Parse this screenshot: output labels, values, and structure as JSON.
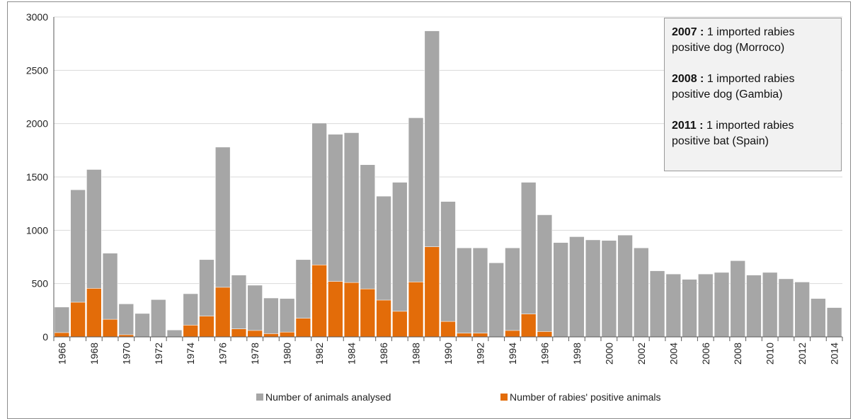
{
  "chart_data": {
    "type": "bar",
    "categories": [
      "1966",
      "1967",
      "1968",
      "1969",
      "1970",
      "1971",
      "1972",
      "1973",
      "1974",
      "1975",
      "1976",
      "1977",
      "1978",
      "1979",
      "1980",
      "1981",
      "1982",
      "1983",
      "1984",
      "1985",
      "1986",
      "1987",
      "1988",
      "1989",
      "1990",
      "1991",
      "1992",
      "1993",
      "1994",
      "1995",
      "1996",
      "1997",
      "1998",
      "1999",
      "2000",
      "2001",
      "2002",
      "2003",
      "2004",
      "2005",
      "2006",
      "2007",
      "2008",
      "2009",
      "2010",
      "2011",
      "2012",
      "2013",
      "2014"
    ],
    "x_tick_labels": [
      "1966",
      "1968",
      "1970",
      "1972",
      "1974",
      "1976",
      "1978",
      "1980",
      "1982",
      "1984",
      "1986",
      "1988",
      "1990",
      "1992",
      "1994",
      "1996",
      "1998",
      "2000",
      "2002",
      "2004",
      "2006",
      "2008",
      "2010",
      "2012",
      "2014"
    ],
    "series": [
      {
        "name": "Number of animals analysed",
        "color": "#a6a6a6",
        "values": [
          280,
          1380,
          1570,
          785,
          310,
          220,
          350,
          65,
          405,
          725,
          1780,
          580,
          485,
          365,
          360,
          725,
          2005,
          1900,
          1915,
          1615,
          1320,
          1450,
          2055,
          2870,
          1270,
          835,
          835,
          695,
          835,
          1450,
          1145,
          885,
          940,
          910,
          905,
          955,
          835,
          620,
          590,
          540,
          590,
          605,
          715,
          580,
          605,
          545,
          515,
          360,
          275
        ]
      },
      {
        "name": "Number of rabies' positive animals",
        "color": "#e36c09",
        "values": [
          40,
          325,
          455,
          165,
          20,
          0,
          0,
          0,
          110,
          195,
          465,
          75,
          60,
          30,
          45,
          175,
          675,
          520,
          510,
          450,
          345,
          240,
          515,
          845,
          145,
          35,
          35,
          0,
          60,
          215,
          50,
          0,
          0,
          0,
          0,
          0,
          0,
          0,
          0,
          0,
          0,
          0,
          0,
          0,
          0,
          0,
          0,
          0,
          0
        ]
      }
    ],
    "ylim": [
      0,
      3000
    ],
    "yticks": [
      0,
      500,
      1000,
      1500,
      2000,
      2500,
      3000
    ],
    "grid": true,
    "legend_position": "bottom",
    "annotations": [
      {
        "year": "2007 :",
        "text": "1 imported rabies positive dog (Morroco)"
      },
      {
        "year": "2008 :",
        "text": "1 imported rabies positive dog (Gambia)"
      },
      {
        "year": "2011 :",
        "text": "1 imported rabies positive bat (Spain)"
      }
    ]
  }
}
